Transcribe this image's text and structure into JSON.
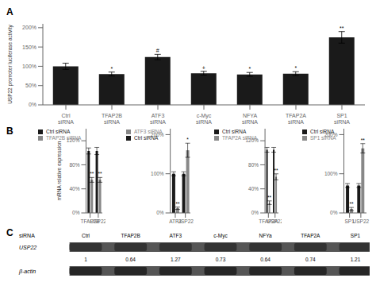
{
  "chart_data": [
    {
      "type": "bar",
      "title": "A",
      "categories": [
        "Ctrl\nsiRNA",
        "TFAP2B\nsiRNA",
        "ATF3\nsiRNA",
        "c-Myc\nsiRNA",
        "NFYA\nsiRNA",
        "TFAP2A\nsiRNA",
        "SP1\nsiRNA"
      ],
      "values": [
        100,
        80,
        124,
        82,
        79,
        81,
        175
      ],
      "errors": [
        8,
        5,
        7,
        5,
        5,
        5,
        15
      ],
      "significance": [
        null,
        "*",
        "#",
        "+",
        "*",
        "*",
        "**"
      ],
      "color": "#1a1a1a",
      "ylabel": "USP22 promoter luciferase activity",
      "ylim": [
        0,
        210
      ],
      "yticks": [
        {
          "value": 0,
          "label": "0%"
        },
        {
          "value": 50,
          "label": "50%"
        },
        {
          "value": 100,
          "label": "100%"
        },
        {
          "value": 150,
          "label": "150%"
        },
        {
          "value": 200,
          "label": "200%"
        }
      ]
    },
    {
      "type": "bar",
      "title": "B",
      "ylabel": "mRNA relative expression",
      "categories": [
        "TFAP2B",
        "USP22"
      ],
      "series": [
        {
          "name": "Ctrl siRNA",
          "color": "#1a1a1a",
          "values": [
            103,
            103
          ],
          "errors": [
            5,
            6
          ]
        },
        {
          "name": "TFAP2B siRNA",
          "color": "#888888",
          "values": [
            55,
            55
          ],
          "errors": [
            4,
            4
          ],
          "significance": [
            "**",
            "**"
          ]
        }
      ],
      "ylim": [
        0,
        140
      ],
      "yticks": [
        {
          "value": 0,
          "label": "0%"
        },
        {
          "value": 40,
          "label": "40%"
        },
        {
          "value": 80,
          "label": "80%"
        },
        {
          "value": 120,
          "label": "120%"
        }
      ],
      "legend": "top"
    },
    {
      "type": "bar",
      "categories": [
        "ATF3",
        "USP22"
      ],
      "series": [
        {
          "name": "Ctrl siRNA",
          "color": "#1a1a1a",
          "values": [
            100,
            100
          ],
          "errors": [
            5,
            5
          ]
        },
        {
          "name": "ATF3 siRNA",
          "color": "#888888",
          "values": [
            12,
            160
          ],
          "errors": [
            3,
            18
          ],
          "significance": [
            "**",
            "*"
          ]
        }
      ],
      "ylim": [
        0,
        215
      ],
      "yticks": [
        {
          "value": 0,
          "label": "0%"
        },
        {
          "value": 100,
          "label": "100%"
        },
        {
          "value": 200,
          "label": "200%"
        }
      ],
      "legend": "top"
    },
    {
      "type": "bar",
      "categories": [
        "TFAP2A",
        "USP22"
      ],
      "series": [
        {
          "name": "Ctrl siRNA",
          "color": "#1a1a1a",
          "values": [
            105,
            105
          ],
          "errors": [
            4,
            4
          ]
        },
        {
          "name": "TFAP2A siRNA",
          "color": "#888888",
          "values": [
            17,
            60
          ],
          "errors": [
            3,
            5
          ],
          "significance": [
            "**",
            "**"
          ]
        }
      ],
      "ylim": [
        0,
        140
      ],
      "yticks": [
        {
          "value": 0,
          "label": "0%"
        },
        {
          "value": 40,
          "label": "40%"
        },
        {
          "value": 80,
          "label": "80%"
        },
        {
          "value": 120,
          "label": "120%"
        }
      ],
      "legend": "top"
    },
    {
      "type": "bar",
      "categories": [
        "SP1",
        "USP22"
      ],
      "series": [
        {
          "name": "Ctrl siRNA",
          "color": "#1a1a1a",
          "values": [
            70,
            70
          ],
          "errors": [
            5,
            5
          ]
        },
        {
          "name": "SP1 siRNA",
          "color": "#888888",
          "values": [
            10,
            165
          ],
          "errors": [
            4,
            12
          ],
          "significance": [
            "**",
            "**"
          ]
        }
      ],
      "ylim": [
        0,
        215
      ],
      "yticks": [
        {
          "value": 0,
          "label": "0%"
        },
        {
          "value": 100,
          "label": "100%"
        },
        {
          "value": 200,
          "label": "200%"
        }
      ],
      "legend": "top"
    },
    {
      "type": "table",
      "title": "C",
      "header_label": "siRNA",
      "categories": [
        "Ctrl",
        "TFAP2B",
        "ATF3",
        "c-Myc",
        "NFYa",
        "TFAP2A",
        "SP1"
      ],
      "protein_label": "USP22",
      "loading_label": "β-actin",
      "values": [
        1,
        0.64,
        1.27,
        0.73,
        0.64,
        0.74,
        1.21
      ]
    }
  ]
}
